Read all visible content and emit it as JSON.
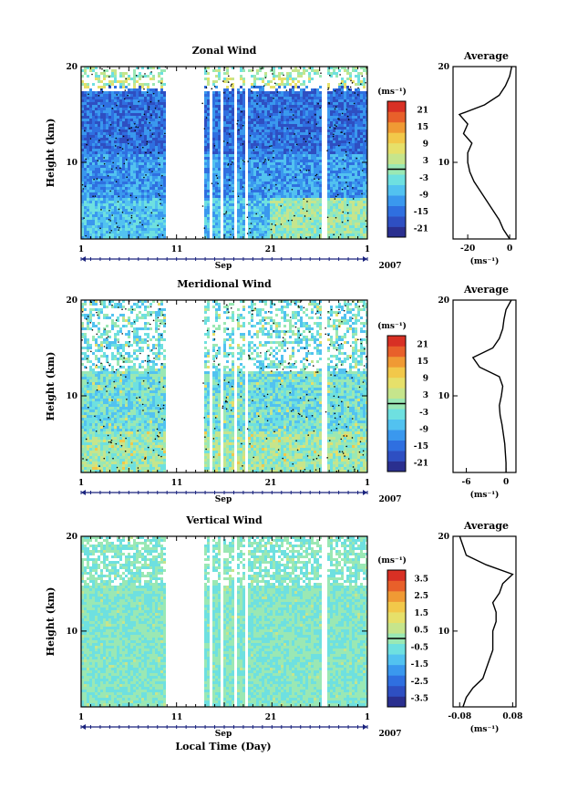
{
  "figure": {
    "xlabel": "Local Time (Day)",
    "month_label": "Sep",
    "year_label": "2007"
  },
  "colorscale": [
    "#2a2f8f",
    "#2e4fc2",
    "#2f6fe0",
    "#3a98ee",
    "#52c2f0",
    "#6ee0e0",
    "#9ae8b4",
    "#c6e58c",
    "#e6e06a",
    "#f2c84a",
    "#f09a34",
    "#e8602a",
    "#d83024"
  ],
  "chart_data": [
    {
      "type": "heatmap",
      "title": "Zonal Wind",
      "ylabel": "Height (km)",
      "x_ticks": [
        "1",
        "11",
        "21",
        "1"
      ],
      "y_ticks": [
        "20",
        "10"
      ],
      "ylim": [
        2,
        20
      ],
      "colorbar": {
        "unit": "(ms⁻¹)",
        "ticks": [
          "21",
          "15",
          "9",
          "3",
          "-3",
          "-9",
          "-15",
          "-21"
        ],
        "range": [
          -24,
          24
        ]
      },
      "profile": {
        "title": "Average",
        "x_ticks": [
          "-20",
          "0"
        ],
        "xlim": [
          -27,
          3
        ],
        "unit": "(ms⁻¹)",
        "height": [
          2,
          3,
          4,
          5,
          6,
          7,
          8,
          9,
          10,
          11,
          12,
          13,
          14,
          15,
          16,
          17,
          18,
          19,
          20
        ],
        "values": [
          0,
          -3,
          -5,
          -8,
          -11,
          -14,
          -17,
          -19,
          -20,
          -20,
          -18,
          -22,
          -20,
          -24,
          -12,
          -5,
          -2,
          0,
          1
        ]
      }
    },
    {
      "type": "heatmap",
      "title": "Meridional Wind",
      "ylabel": "Height (km)",
      "x_ticks": [
        "1",
        "11",
        "21",
        "1"
      ],
      "y_ticks": [
        "20",
        "10"
      ],
      "ylim": [
        2,
        20
      ],
      "colorbar": {
        "unit": "(ms⁻¹)",
        "ticks": [
          "21",
          "15",
          "9",
          "3",
          "-3",
          "-9",
          "-15",
          "-21"
        ],
        "range": [
          -24,
          24
        ]
      },
      "profile": {
        "title": "Average",
        "x_ticks": [
          "-6",
          "0"
        ],
        "xlim": [
          -8,
          1.5
        ],
        "unit": "(ms⁻¹)",
        "height": [
          2,
          3,
          4,
          5,
          6,
          7,
          8,
          9,
          10,
          11,
          12,
          13,
          14,
          15,
          16,
          17,
          18,
          19,
          20
        ],
        "values": [
          0,
          0,
          -0.1,
          -0.2,
          -0.4,
          -0.6,
          -0.9,
          -1,
          -0.7,
          -0.5,
          -1,
          -4,
          -5,
          -2,
          -1,
          -0.5,
          -0.3,
          0,
          0.8
        ]
      }
    },
    {
      "type": "heatmap",
      "title": "Vertical Wind",
      "ylabel": "Height (km)",
      "x_ticks": [
        "1",
        "11",
        "21",
        "1"
      ],
      "y_ticks": [
        "20",
        "10"
      ],
      "ylim": [
        2,
        20
      ],
      "colorbar": {
        "unit": "(ms⁻¹)",
        "ticks": [
          "3.5",
          "2.5",
          "1.5",
          "0.5",
          "-0.5",
          "-1.5",
          "-2.5",
          "-3.5"
        ],
        "range": [
          -4,
          4
        ]
      },
      "profile": {
        "title": "Average",
        "x_ticks": [
          "-0.08",
          "0.08"
        ],
        "xlim": [
          -0.1,
          0.09
        ],
        "unit": "(ms⁻¹)",
        "height": [
          2,
          3,
          4,
          5,
          6,
          7,
          8,
          9,
          10,
          11,
          12,
          13,
          14,
          15,
          16,
          17,
          18,
          19,
          20
        ],
        "values": [
          -0.07,
          -0.06,
          -0.04,
          -0.01,
          0.0,
          0.01,
          0.02,
          0.02,
          0.02,
          0.03,
          0.03,
          0.02,
          0.04,
          0.05,
          0.08,
          0.0,
          -0.06,
          -0.07,
          -0.08
        ]
      }
    }
  ]
}
